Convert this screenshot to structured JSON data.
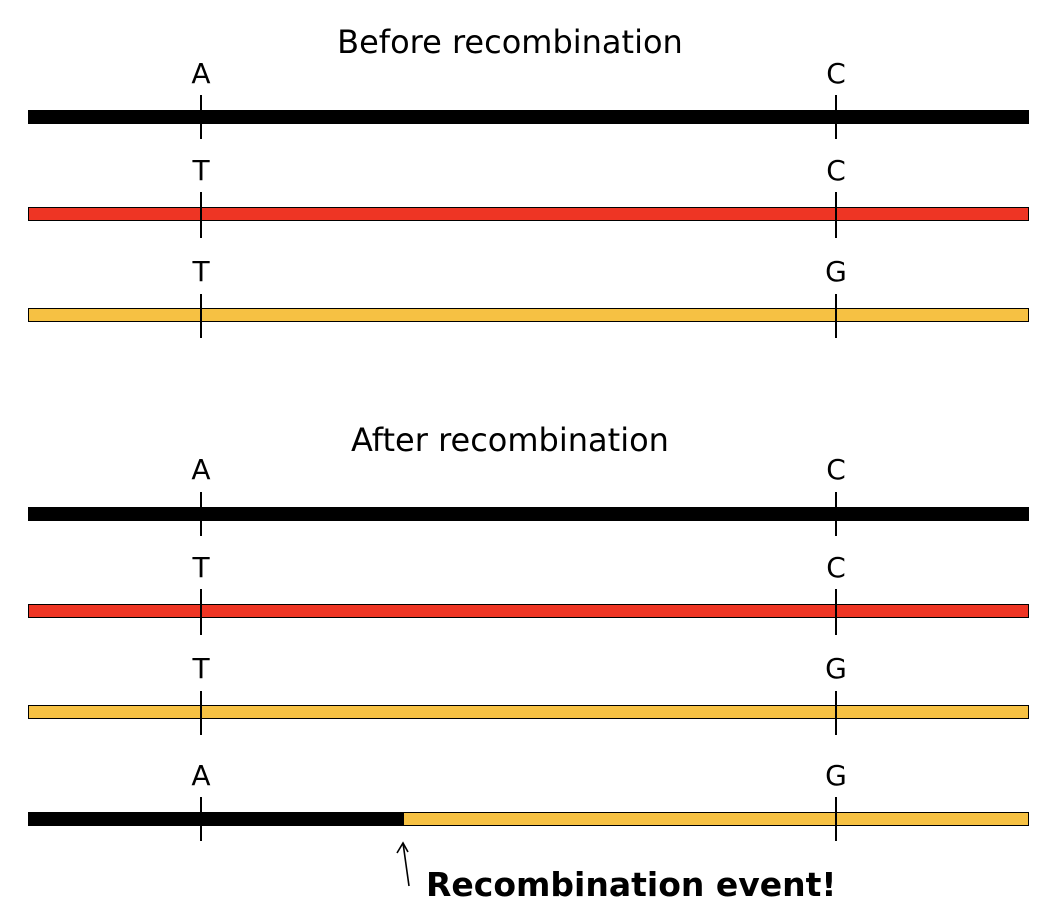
{
  "before": {
    "title": "Before recombination",
    "rows": [
      {
        "left_allele": "A",
        "right_allele": "C",
        "color": "#000000"
      },
      {
        "left_allele": "T",
        "right_allele": "C",
        "color": "#ee3524"
      },
      {
        "left_allele": "T",
        "right_allele": "G",
        "color": "#f6c143"
      }
    ]
  },
  "after": {
    "title": "After recombination",
    "rows": [
      {
        "left_allele": "A",
        "right_allele": "C",
        "color": "#000000"
      },
      {
        "left_allele": "T",
        "right_allele": "C",
        "color": "#ee3524"
      },
      {
        "left_allele": "T",
        "right_allele": "G",
        "color": "#f6c143"
      },
      {
        "left_allele": "A",
        "right_allele": "G",
        "left_color": "#000000",
        "right_color": "#f6c143"
      }
    ]
  },
  "annotation": {
    "label": "Recombination event!"
  }
}
